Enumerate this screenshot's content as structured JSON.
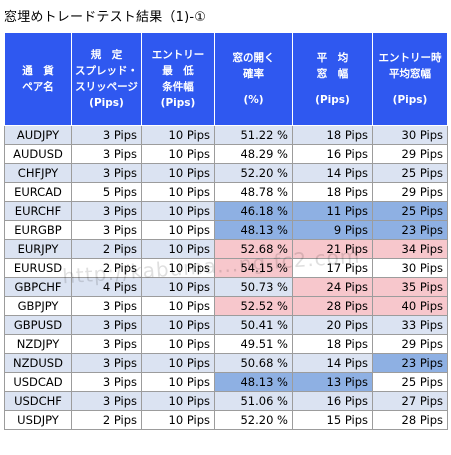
{
  "title": "窓埋めトレードテスト結果（1)-①",
  "headers": [
    [
      "通　貨",
      "ペア名"
    ],
    [
      "規　定",
      "スプレッド・",
      "スリッページ",
      "(Pips)"
    ],
    [
      "エントリー",
      "最　低",
      "条件幅",
      "(Pips)"
    ],
    [
      "窓の開く",
      "確率",
      "",
      "(%)"
    ],
    [
      "平　均",
      "窓　幅",
      "",
      "(Pips)"
    ],
    [
      "エントリー時",
      "平均窓幅",
      "",
      "(Pips)"
    ]
  ],
  "rows": [
    {
      "pair": "AUDJPY",
      "spread": "3 Pips",
      "min": "10 Pips",
      "prob": "51.22 %",
      "win": "18 Pips",
      "entry": "30 Pips"
    },
    {
      "pair": "AUDUSD",
      "spread": "3 Pips",
      "min": "10 Pips",
      "prob": "48.29 %",
      "win": "16 Pips",
      "entry": "29 Pips"
    },
    {
      "pair": "CHFJPY",
      "spread": "3 Pips",
      "min": "10 Pips",
      "prob": "52.20 %",
      "win": "14 Pips",
      "entry": "25 Pips"
    },
    {
      "pair": "EURCAD",
      "spread": "5 Pips",
      "min": "10 Pips",
      "prob": "48.78 %",
      "win": "18 Pips",
      "entry": "29 Pips"
    },
    {
      "pair": "EURCHF",
      "spread": "3 Pips",
      "min": "10 Pips",
      "prob": "46.18 %",
      "win": "11 Pips",
      "entry": "25 Pips"
    },
    {
      "pair": "EURGBP",
      "spread": "3 Pips",
      "min": "10 Pips",
      "prob": "48.13 %",
      "win": "9 Pips",
      "entry": "23 Pips"
    },
    {
      "pair": "EURJPY",
      "spread": "2 Pips",
      "min": "10 Pips",
      "prob": "52.68 %",
      "win": "21 Pips",
      "entry": "34 Pips"
    },
    {
      "pair": "EURUSD",
      "spread": "2 Pips",
      "min": "10 Pips",
      "prob": "54.15 %",
      "win": "17 Pips",
      "entry": "30 Pips"
    },
    {
      "pair": "GBPCHF",
      "spread": "4 Pips",
      "min": "10 Pips",
      "prob": "50.73 %",
      "win": "24 Pips",
      "entry": "35 Pips"
    },
    {
      "pair": "GBPJPY",
      "spread": "3 Pips",
      "min": "10 Pips",
      "prob": "52.52 %",
      "win": "28 Pips",
      "entry": "40 Pips"
    },
    {
      "pair": "GBPUSD",
      "spread": "3 Pips",
      "min": "10 Pips",
      "prob": "50.41 %",
      "win": "20 Pips",
      "entry": "33 Pips"
    },
    {
      "pair": "NZDJPY",
      "spread": "3 Pips",
      "min": "10 Pips",
      "prob": "49.51 %",
      "win": "18 Pips",
      "entry": "29 Pips"
    },
    {
      "pair": "NZDUSD",
      "spread": "3 Pips",
      "min": "10 Pips",
      "prob": "50.68 %",
      "win": "14 Pips",
      "entry": "23 Pips"
    },
    {
      "pair": "USDCAD",
      "spread": "3 Pips",
      "min": "10 Pips",
      "prob": "48.13 %",
      "win": "13 Pips",
      "entry": "25 Pips"
    },
    {
      "pair": "USDCHF",
      "spread": "3 Pips",
      "min": "10 Pips",
      "prob": "51.06 %",
      "win": "16 Pips",
      "entry": "27 Pips"
    },
    {
      "pair": "USDJPY",
      "spread": "2 Pips",
      "min": "10 Pips",
      "prob": "52.20 %",
      "win": "15 Pips",
      "entry": "28 Pips"
    }
  ],
  "highlights": {
    "blue": [
      [
        4,
        "prob"
      ],
      [
        4,
        "win"
      ],
      [
        4,
        "entry"
      ],
      [
        5,
        "prob"
      ],
      [
        5,
        "win"
      ],
      [
        5,
        "entry"
      ],
      [
        12,
        "entry"
      ],
      [
        13,
        "prob"
      ],
      [
        13,
        "win"
      ]
    ],
    "red": [
      [
        6,
        "prob"
      ],
      [
        6,
        "win"
      ],
      [
        6,
        "entry"
      ],
      [
        7,
        "prob"
      ],
      [
        8,
        "win"
      ],
      [
        8,
        "entry"
      ],
      [
        9,
        "prob"
      ],
      [
        9,
        "win"
      ],
      [
        9,
        "entry"
      ]
    ]
  },
  "colors": {
    "header_bg": "#2f58f0",
    "row_alt": "#dbe3f2",
    "highlight_blue": "#8eb0e3",
    "highlight_red": "#f7c7cc"
  },
  "watermark": "http://kabuma...ng.fc2.com"
}
